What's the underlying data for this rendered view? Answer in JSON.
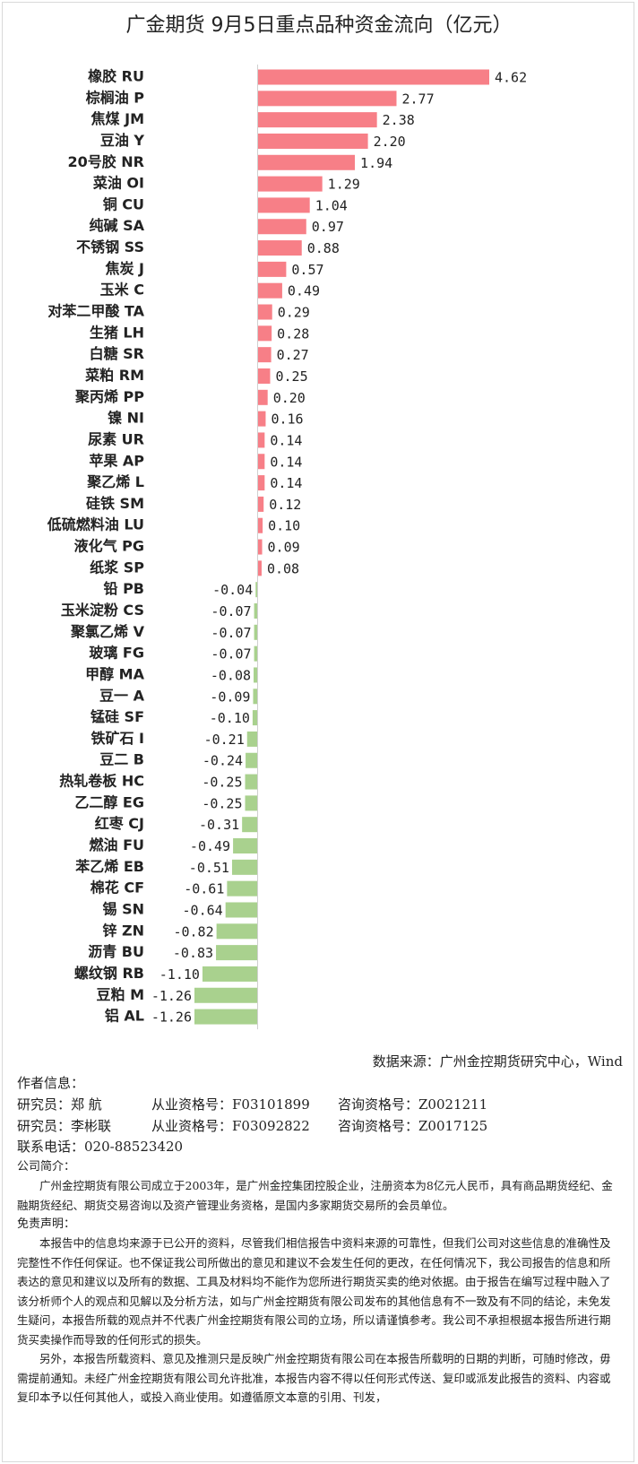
{
  "chart_data": {
    "type": "hbar",
    "title": "广金期货 9月5日重点品种资金流向（亿元）",
    "categories": [
      "橡胶 RU",
      "棕榈油 P",
      "焦煤 JM",
      "豆油 Y",
      "20号胶 NR",
      "菜油 OI",
      "铜 CU",
      "纯碱 SA",
      "不锈钢 SS",
      "焦炭 J",
      "玉米 C",
      "对苯二甲酸 TA",
      "生猪 LH",
      "白糖 SR",
      "菜粕 RM",
      "聚丙烯 PP",
      "镍 NI",
      "尿素 UR",
      "苹果 AP",
      "聚乙烯 L",
      "硅铁 SM",
      "低硫燃料油 LU",
      "液化气 PG",
      "纸浆 SP",
      "铅 PB",
      "玉米淀粉 CS",
      "聚氯乙烯 V",
      "玻璃 FG",
      "甲醇 MA",
      "豆一 A",
      "锰硅 SF",
      "铁矿石 I",
      "豆二 B",
      "热轧卷板 HC",
      "乙二醇 EG",
      "红枣 CJ",
      "燃油 FU",
      "苯乙烯 EB",
      "棉花 CF",
      "锡 SN",
      "锌 ZN",
      "沥青 BU",
      "螺纹钢 RB",
      "豆粕 M",
      "铝 AL"
    ],
    "values": [
      4.62,
      2.77,
      2.38,
      2.2,
      1.94,
      1.29,
      1.04,
      0.97,
      0.88,
      0.57,
      0.49,
      0.29,
      0.28,
      0.27,
      0.25,
      0.2,
      0.16,
      0.14,
      0.14,
      0.14,
      0.12,
      0.1,
      0.09,
      0.08,
      -0.04,
      -0.07,
      -0.07,
      -0.07,
      -0.08,
      -0.09,
      -0.1,
      -0.21,
      -0.24,
      -0.25,
      -0.25,
      -0.31,
      -0.49,
      -0.51,
      -0.61,
      -0.64,
      -0.82,
      -0.83,
      -1.1,
      -1.26,
      -1.26
    ],
    "value_labels": [
      "4.62",
      "2.77",
      "2.38",
      "2.20",
      "1.94",
      "1.29",
      "1.04",
      "0.97",
      "0.88",
      "0.57",
      "0.49",
      "0.29",
      "0.28",
      "0.27",
      "0.25",
      "0.20",
      "0.16",
      "0.14",
      "0.14",
      "0.14",
      "0.12",
      "0.10",
      "0.09",
      "0.08",
      "-0.04",
      "-0.07",
      "-0.07",
      "-0.07",
      "-0.08",
      "-0.09",
      "-0.10",
      "-0.21",
      "-0.24",
      "-0.25",
      "-0.25",
      "-0.31",
      "-0.49",
      "-0.51",
      "-0.61",
      "-0.64",
      "-0.82",
      "-0.83",
      "-1.10",
      "-1.26",
      "-1.26"
    ],
    "positive_color": "#f77f87",
    "negative_color": "#a9d18e"
  },
  "footer": {
    "source": "数据来源：广州金控期货研究中心，Wind",
    "author_heading": "作者信息：",
    "researchers": [
      [
        "研究员：郑 航",
        "从业资格号：F03101899",
        "咨询资格号：Z0021211"
      ],
      [
        "研究员：李彬联",
        "从业资格号：F03092822",
        "咨询资格号：Z0017125"
      ]
    ],
    "phone": "联系电话：020-88523420",
    "company_heading": "公司简介：",
    "company_text": "广州金控期货有限公司成立于2003年，是广州金控集团控股企业，注册资本为8亿元人民币，具有商品期货经纪、金融期货经纪、期货交易咨询以及资产管理业务资格，是国内多家期货交易所的会员单位。",
    "disclaimer_heading": "免责声明：",
    "disclaimer": [
      "本报告中的信息均来源于已公开的资料，尽管我们相信报告中资料来源的可靠性，但我们公司对这些信息的准确性及完整性不作任何保证。也不保证我公司所做出的意见和建议不会发生任何的更改，在任何情况下，我公司报告的信息和所表达的意见和建议以及所有的数据、工具及材料均不能作为您所进行期货买卖的绝对依据。由于报告在编写过程中融入了该分析师个人的观点和见解以及分析方法，如与广州金控期货有限公司发布的其他信息有不一致及有不同的结论，未免发生疑问，本报告所载的观点并不代表广州金控期货有限公司的立场，所以请谨慎参考。我公司不承担根据本报告所进行期货买卖操作而导致的任何形式的损失。",
      "另外，本报告所载资料、意见及推测只是反映广州金控期货有限公司在本报告所载明的日期的判断，可随时修改，毋需提前通知。未经广州金控期货有限公司允许批准，本报告内容不得以任何形式传送、复印或派发此报告的资料、内容或复印本予以任何其他人，或投入商业使用。如遵循原文本意的引用、刊发，"
    ]
  }
}
